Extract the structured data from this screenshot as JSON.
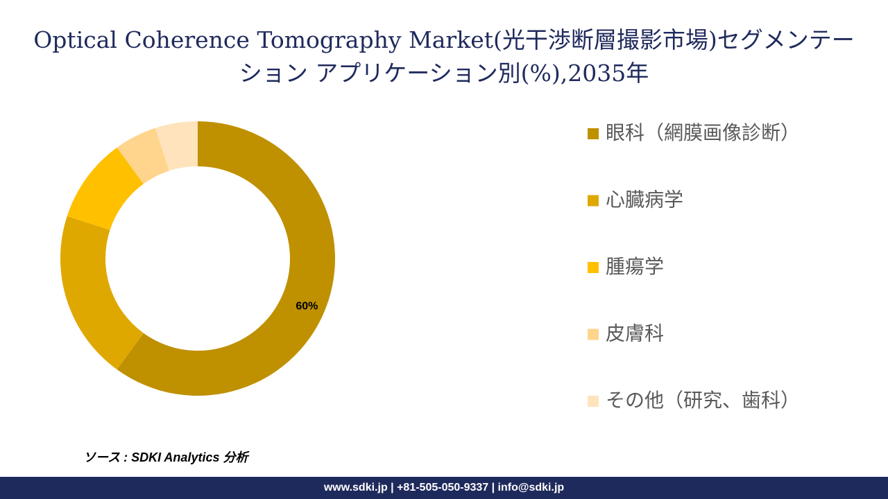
{
  "chart_data": {
    "type": "donut",
    "title": "Optical Coherence Tomography Market(光干渉断層撮影市場)セグメンテーション アプリケーション別(%),2035年",
    "categories": [
      "眼科（網膜画像診断）",
      "心臓病学",
      "腫瘍学",
      "皮膚科",
      "その他（研究、歯科）"
    ],
    "values": [
      60,
      20,
      10,
      5,
      5
    ],
    "value_labels": [
      "60%",
      null,
      null,
      null,
      null
    ],
    "colors": [
      "#BF9000",
      "#DFA800",
      "#FFC000",
      "#FFD48C",
      "#FFE3BD"
    ],
    "legend": "right"
  },
  "source": "ソース : SDKI Analytics 分析",
  "footer": "www.sdki.jp | +81-505-050-9337 | info@sdki.jp"
}
